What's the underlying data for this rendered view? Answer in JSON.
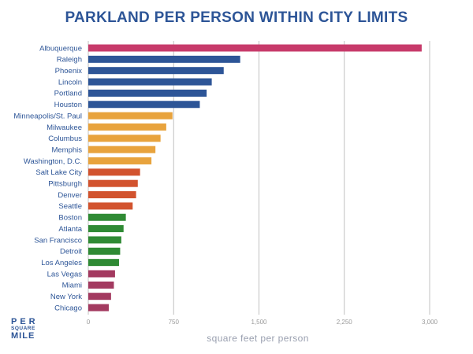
{
  "chart_data": {
    "type": "bar",
    "orientation": "horizontal",
    "title": "PARKLAND PER PERSON WITHIN CITY LIMITS",
    "xlabel": "square feet per person",
    "xlim": [
      0,
      3000
    ],
    "xticks": [
      0,
      750,
      1500,
      2250,
      3000
    ],
    "xtick_labels": [
      "0",
      "750",
      "1,500",
      "2,250",
      "3,000"
    ],
    "grid": true,
    "categories": [
      "Albuquerque",
      "Raleigh",
      "Phoenix",
      "Lincoln",
      "Portland",
      "Houston",
      "Minneapolis/St. Paul",
      "Milwaukee",
      "Columbus",
      "Memphis",
      "Washington, D.C.",
      "Salt Lake City",
      "Pittsburgh",
      "Denver",
      "Seattle",
      "Boston",
      "Atlanta",
      "San Francisco",
      "Detroit",
      "Los Angeles",
      "Las Vegas",
      "Miami",
      "New York",
      "Chicago"
    ],
    "values": [
      2930,
      1335,
      1190,
      1085,
      1040,
      980,
      740,
      685,
      635,
      590,
      555,
      455,
      435,
      420,
      390,
      330,
      310,
      290,
      280,
      270,
      235,
      225,
      200,
      180
    ],
    "bar_colors": [
      "#c73a6a",
      "#2d5597",
      "#2d5597",
      "#2d5597",
      "#2d5597",
      "#2d5597",
      "#e8a33d",
      "#e8a33d",
      "#e8a33d",
      "#e8a33d",
      "#e8a33d",
      "#d2532e",
      "#d2532e",
      "#d2532e",
      "#d2532e",
      "#2f8a34",
      "#2f8a34",
      "#2f8a34",
      "#2f8a34",
      "#2f8a34",
      "#a33a60",
      "#a33a60",
      "#a33a60",
      "#a33a60"
    ],
    "grid_color": "#c0c0c0"
  },
  "logo": {
    "line1": "PER",
    "line2": "SQUARE",
    "line3": "MILE"
  }
}
